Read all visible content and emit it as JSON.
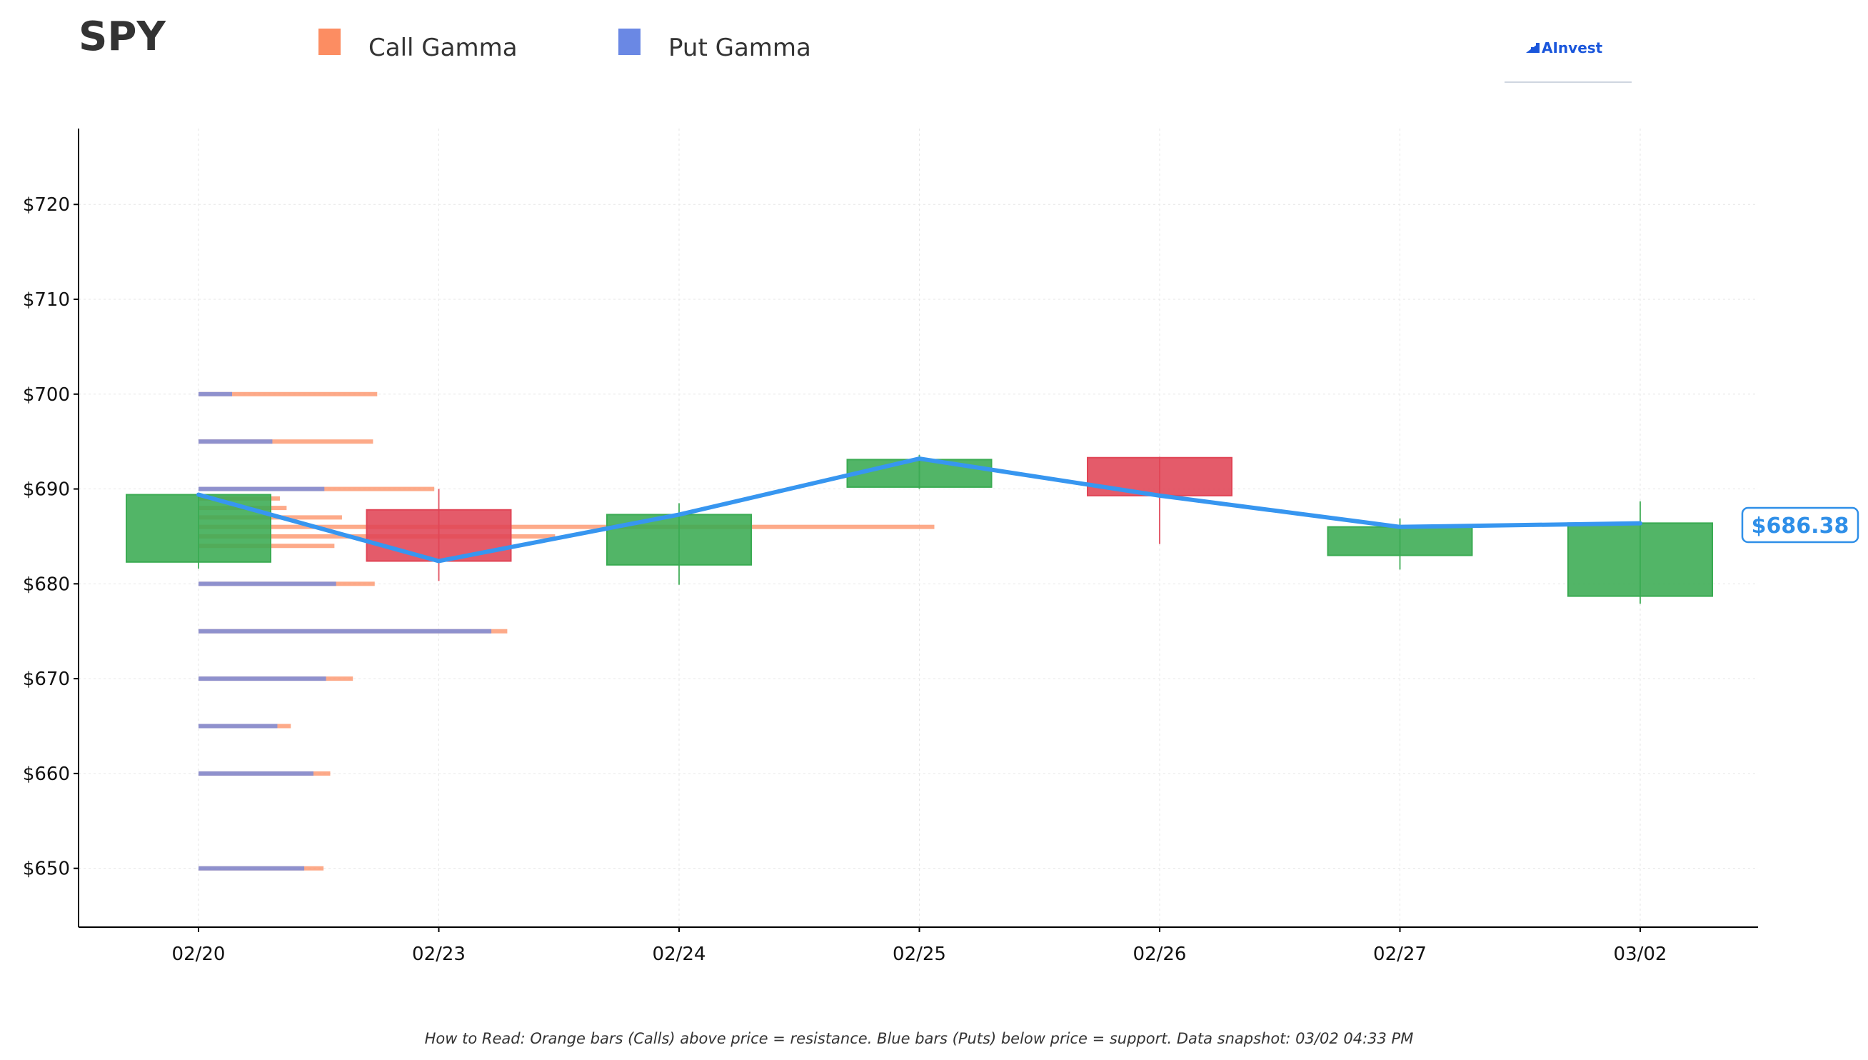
{
  "title": "SPY",
  "brand": "AInvest",
  "legend": [
    {
      "label": "Call Gamma",
      "color": "#fc8d62"
    },
    {
      "label": "Put Gamma",
      "color": "#6a88e4"
    }
  ],
  "current_price_label": "$686.38",
  "footnote": "How to Read: Orange bars (Calls) above price = resistance. Blue bars (Puts) below price = support. Data snapshot: 03/02 04:33 PM",
  "colors": {
    "up": "#3aab52",
    "down": "#e04455",
    "price_line": "#3796f0",
    "call": "#fc8d62",
    "put": "#6a88e4"
  },
  "chart_data": {
    "type": "candlestick",
    "title": "SPY",
    "categories": [
      "02/20",
      "02/23",
      "02/24",
      "02/25",
      "02/26",
      "02/27",
      "03/02"
    ],
    "ylim": [
      643.8,
      728
    ],
    "yticks": [
      650,
      660,
      670,
      680,
      690,
      700,
      710,
      720
    ],
    "ytick_labels": [
      "$650",
      "$660",
      "$670",
      "$680",
      "$690",
      "$700",
      "$710",
      "$720"
    ],
    "grid": true,
    "legend_position": "top",
    "candles": [
      {
        "date": "02/20",
        "open": 682.3,
        "close": 689.4,
        "high": 689.6,
        "low": 681.6
      },
      {
        "date": "02/23",
        "open": 687.8,
        "close": 682.4,
        "high": 690.0,
        "low": 680.3
      },
      {
        "date": "02/24",
        "open": 682.0,
        "close": 687.3,
        "high": 688.5,
        "low": 679.9
      },
      {
        "date": "02/25",
        "open": 690.2,
        "close": 693.1,
        "high": 693.6,
        "low": 690.0
      },
      {
        "date": "02/26",
        "open": 693.3,
        "close": 689.3,
        "high": 693.4,
        "low": 684.2
      },
      {
        "date": "02/27",
        "open": 683.0,
        "close": 686.0,
        "high": 686.9,
        "low": 681.5
      },
      {
        "date": "03/02",
        "open": 678.7,
        "close": 686.4,
        "high": 688.7,
        "low": 677.9
      }
    ],
    "price_line": [
      689.4,
      682.4,
      687.3,
      693.2,
      689.3,
      686.0,
      686.38
    ],
    "gamma_units": "relative",
    "gamma": [
      {
        "strike": 700,
        "call": 0.213,
        "put": 0.04
      },
      {
        "strike": 695,
        "call": 0.208,
        "put": 0.088
      },
      {
        "strike": 690,
        "call": 0.281,
        "put": 0.15
      },
      {
        "strike": 689,
        "call": 0.097,
        "put": 0.0
      },
      {
        "strike": 688,
        "call": 0.105,
        "put": 0.0
      },
      {
        "strike": 687,
        "call": 0.171,
        "put": 0.0
      },
      {
        "strike": 686,
        "call": 0.877,
        "put": 0.0
      },
      {
        "strike": 685,
        "call": 0.425,
        "put": 0.0
      },
      {
        "strike": 684,
        "call": 0.162,
        "put": 0.0
      },
      {
        "strike": 680,
        "call": 0.21,
        "put": 0.164
      },
      {
        "strike": 675,
        "call": 0.368,
        "put": 0.349
      },
      {
        "strike": 670,
        "call": 0.184,
        "put": 0.152
      },
      {
        "strike": 665,
        "call": 0.11,
        "put": 0.094
      },
      {
        "strike": 660,
        "call": 0.157,
        "put": 0.137
      },
      {
        "strike": 650,
        "call": 0.149,
        "put": 0.126
      }
    ]
  }
}
